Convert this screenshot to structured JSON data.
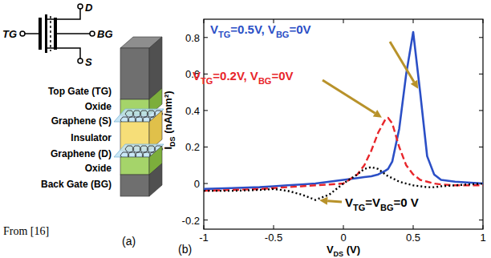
{
  "chart_data": {
    "type": "line",
    "panel_label": "(b)",
    "x_label": "VDS (V)",
    "y_label": "IDS (nA/nm²)",
    "x": [
      -1,
      -0.8,
      -0.6,
      -0.5,
      -0.4,
      -0.3,
      -0.2,
      -0.1,
      0,
      0.1,
      0.15,
      0.2,
      0.25,
      0.3,
      0.32,
      0.35,
      0.4,
      0.45,
      0.5,
      0.55,
      0.6,
      0.65,
      0.7,
      0.8,
      1
    ],
    "xlim": [
      -1,
      1
    ],
    "xticks": [
      -1,
      -0.5,
      0,
      0.5,
      1
    ],
    "ylim": [
      -0.25,
      0.9
    ],
    "yticks": [
      -0.2,
      0,
      0.2,
      0.4,
      0.6,
      0.8
    ],
    "grid": false,
    "series": [
      {
        "name": "VTG=0.5V, VBG=0V",
        "color": "#2b4fc6",
        "line_style": "solid",
        "values": [
          -0.03,
          -0.025,
          -0.02,
          -0.015,
          -0.01,
          -0.005,
          0.0,
          0.01,
          0.02,
          0.03,
          0.035,
          0.04,
          0.05,
          0.07,
          0.08,
          0.12,
          0.3,
          0.6,
          0.83,
          0.5,
          0.15,
          0.05,
          0.02,
          0.01,
          0.0
        ]
      },
      {
        "name": "VTG=0.2V, VBG=0V",
        "color": "#e8262b",
        "line_style": "dashed",
        "values": [
          -0.04,
          -0.035,
          -0.03,
          -0.025,
          -0.02,
          -0.015,
          -0.01,
          -0.005,
          0.0,
          0.05,
          0.1,
          0.18,
          0.28,
          0.35,
          0.36,
          0.33,
          0.2,
          0.1,
          0.05,
          0.02,
          0.01,
          0.0,
          -0.005,
          -0.01,
          -0.01
        ]
      },
      {
        "name": "VTG=VBG=0 V",
        "color": "#000000",
        "line_style": "dotted",
        "values": [
          -0.04,
          -0.04,
          -0.035,
          -0.03,
          -0.04,
          -0.06,
          -0.09,
          -0.06,
          0.0,
          0.05,
          0.08,
          0.09,
          0.08,
          0.05,
          0.04,
          0.03,
          0.01,
          0.0,
          -0.01,
          -0.015,
          -0.02,
          -0.02,
          -0.015,
          -0.01,
          0.0
        ]
      }
    ]
  },
  "diagram": {
    "symbol_terminals": [
      "TG",
      "D",
      "BG",
      "S"
    ],
    "layers": [
      "Top Gate (TG)",
      "Oxide",
      "Graphene (S)",
      "Insulator",
      "Graphene (D)",
      "Oxide",
      "Back Gate (BG)"
    ],
    "source": "From [16]",
    "panel_label": "(a)"
  }
}
